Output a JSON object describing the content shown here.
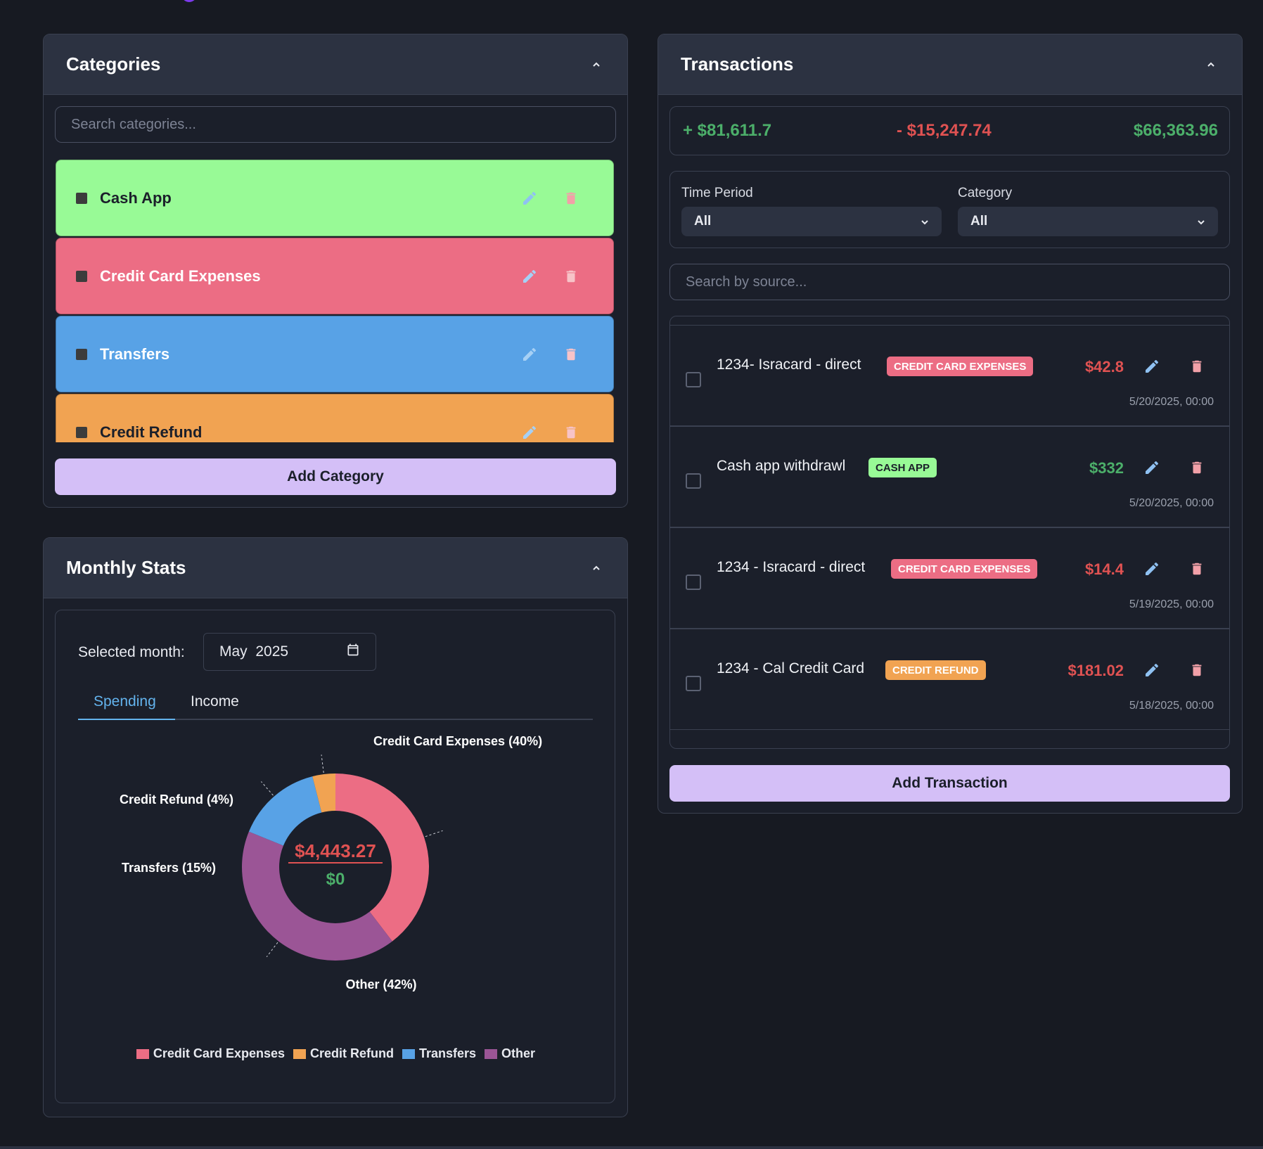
{
  "categories_panel": {
    "title": "Categories",
    "search_placeholder": "Search categories...",
    "items": [
      {
        "label": "Cash App",
        "color": "#98fa96",
        "text_color": "#1b1f2a"
      },
      {
        "label": "Credit Card Expenses",
        "color": "#ec6d84",
        "text_color": "#ffffff"
      },
      {
        "label": "Transfers",
        "color": "#58a2e6",
        "text_color": "#ffffff"
      },
      {
        "label": "Credit Refund",
        "color": "#f1a352",
        "text_color": "#1b1f2a"
      }
    ],
    "add_button": "Add Category"
  },
  "transactions_panel": {
    "title": "Transactions",
    "summary": {
      "income": "+ $81,611.7",
      "expenses": "- $15,247.74",
      "balance": "$66,363.96"
    },
    "filters": {
      "time_period_label": "Time Period",
      "time_period_value": "All",
      "category_label": "Category",
      "category_value": "All"
    },
    "search_placeholder": "Search by source...",
    "rows": [
      {
        "title": "1234- Isracard - direct",
        "badge": "CREDIT CARD EXPENSES",
        "badge_color": "#ec6d84",
        "amount": "$42.8",
        "amount_color": "#e05252",
        "date": "5/20/2025, 00:00"
      },
      {
        "title": "Cash app withdrawl",
        "badge": "CASH APP",
        "badge_color": "#98fa96",
        "amount": "$332",
        "amount_color": "#4caf6a",
        "date": "5/20/2025, 00:00"
      },
      {
        "title": "1234 - Isracard - direct",
        "badge": "CREDIT CARD EXPENSES",
        "badge_color": "#ec6d84",
        "amount": "$14.4",
        "amount_color": "#e05252",
        "date": "5/19/2025, 00:00"
      },
      {
        "title": "1234 - Cal Credit Card",
        "badge": "CREDIT REFUND",
        "badge_color": "#f1a352",
        "amount": "$181.02",
        "amount_color": "#e05252",
        "date": "5/18/2025, 00:00"
      }
    ],
    "add_button": "Add Transaction"
  },
  "stats_panel": {
    "title": "Monthly Stats",
    "month_label": "Selected month:",
    "month_value": "May  2025",
    "tabs": [
      "Spending",
      "Income"
    ],
    "center_spending": "$4,443.27",
    "center_income": "$0"
  },
  "chart_data": {
    "type": "pie",
    "categories": [
      "Credit Card Expenses",
      "Credit Refund",
      "Transfers",
      "Other"
    ],
    "values": [
      40,
      4,
      15,
      42
    ],
    "colors": [
      "#ec6d84",
      "#f1a352",
      "#58a2e6",
      "#9b5596"
    ],
    "slice_labels": [
      "Credit Card Expenses (40%)",
      "Credit Refund (4%)",
      "Transfers (15%)",
      "Other (42%)"
    ],
    "legend": [
      "Credit Card Expenses",
      "Credit Refund",
      "Transfers",
      "Other"
    ],
    "legend_position": "bottom"
  }
}
